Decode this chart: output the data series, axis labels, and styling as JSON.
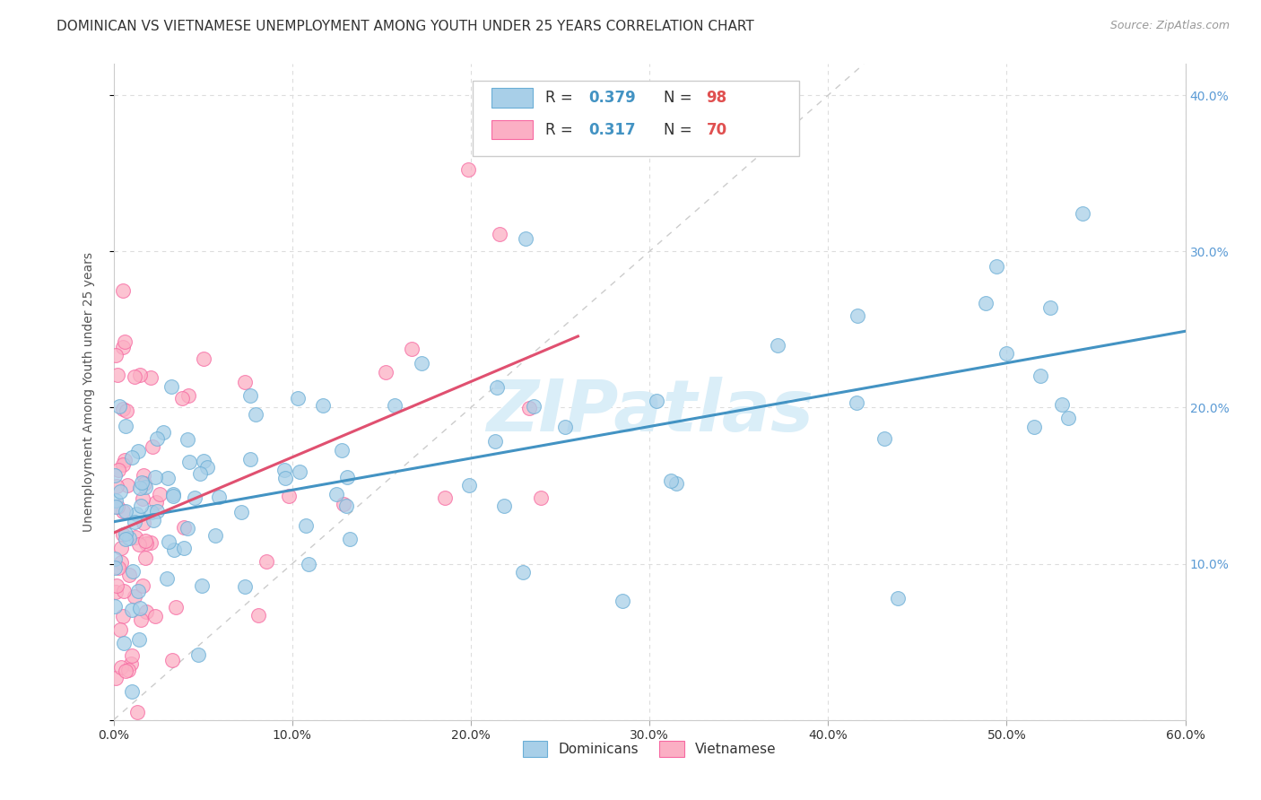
{
  "title": "DOMINICAN VS VIETNAMESE UNEMPLOYMENT AMONG YOUTH UNDER 25 YEARS CORRELATION CHART",
  "source": "Source: ZipAtlas.com",
  "ylabel": "Unemployment Among Youth under 25 years",
  "xlim": [
    0.0,
    0.6
  ],
  "ylim": [
    0.0,
    0.42
  ],
  "xticks": [
    0.0,
    0.1,
    0.2,
    0.3,
    0.4,
    0.5,
    0.6
  ],
  "yticks": [
    0.0,
    0.1,
    0.2,
    0.3,
    0.4
  ],
  "dominican_face": "#a8cfe8",
  "dominican_edge": "#6aaed6",
  "dominican_line": "#4393c3",
  "vietnamese_face": "#fbafc4",
  "vietnamese_edge": "#f768a1",
  "vietnamese_line": "#e05070",
  "diagonal_color": "#cccccc",
  "R_dominican": 0.379,
  "N_dominican": 98,
  "R_vietnamese": 0.317,
  "N_vietnamese": 70,
  "background_color": "#ffffff",
  "grid_color": "#dddddd",
  "title_fontsize": 11,
  "axis_fontsize": 10,
  "tick_fontsize": 10,
  "tick_color": "#5b9bd5",
  "legend_R_color": "#4393c3",
  "legend_N_color": "#e05050",
  "watermark_text": "ZIPatlas",
  "watermark_color": "#daeef8",
  "seed": 7
}
